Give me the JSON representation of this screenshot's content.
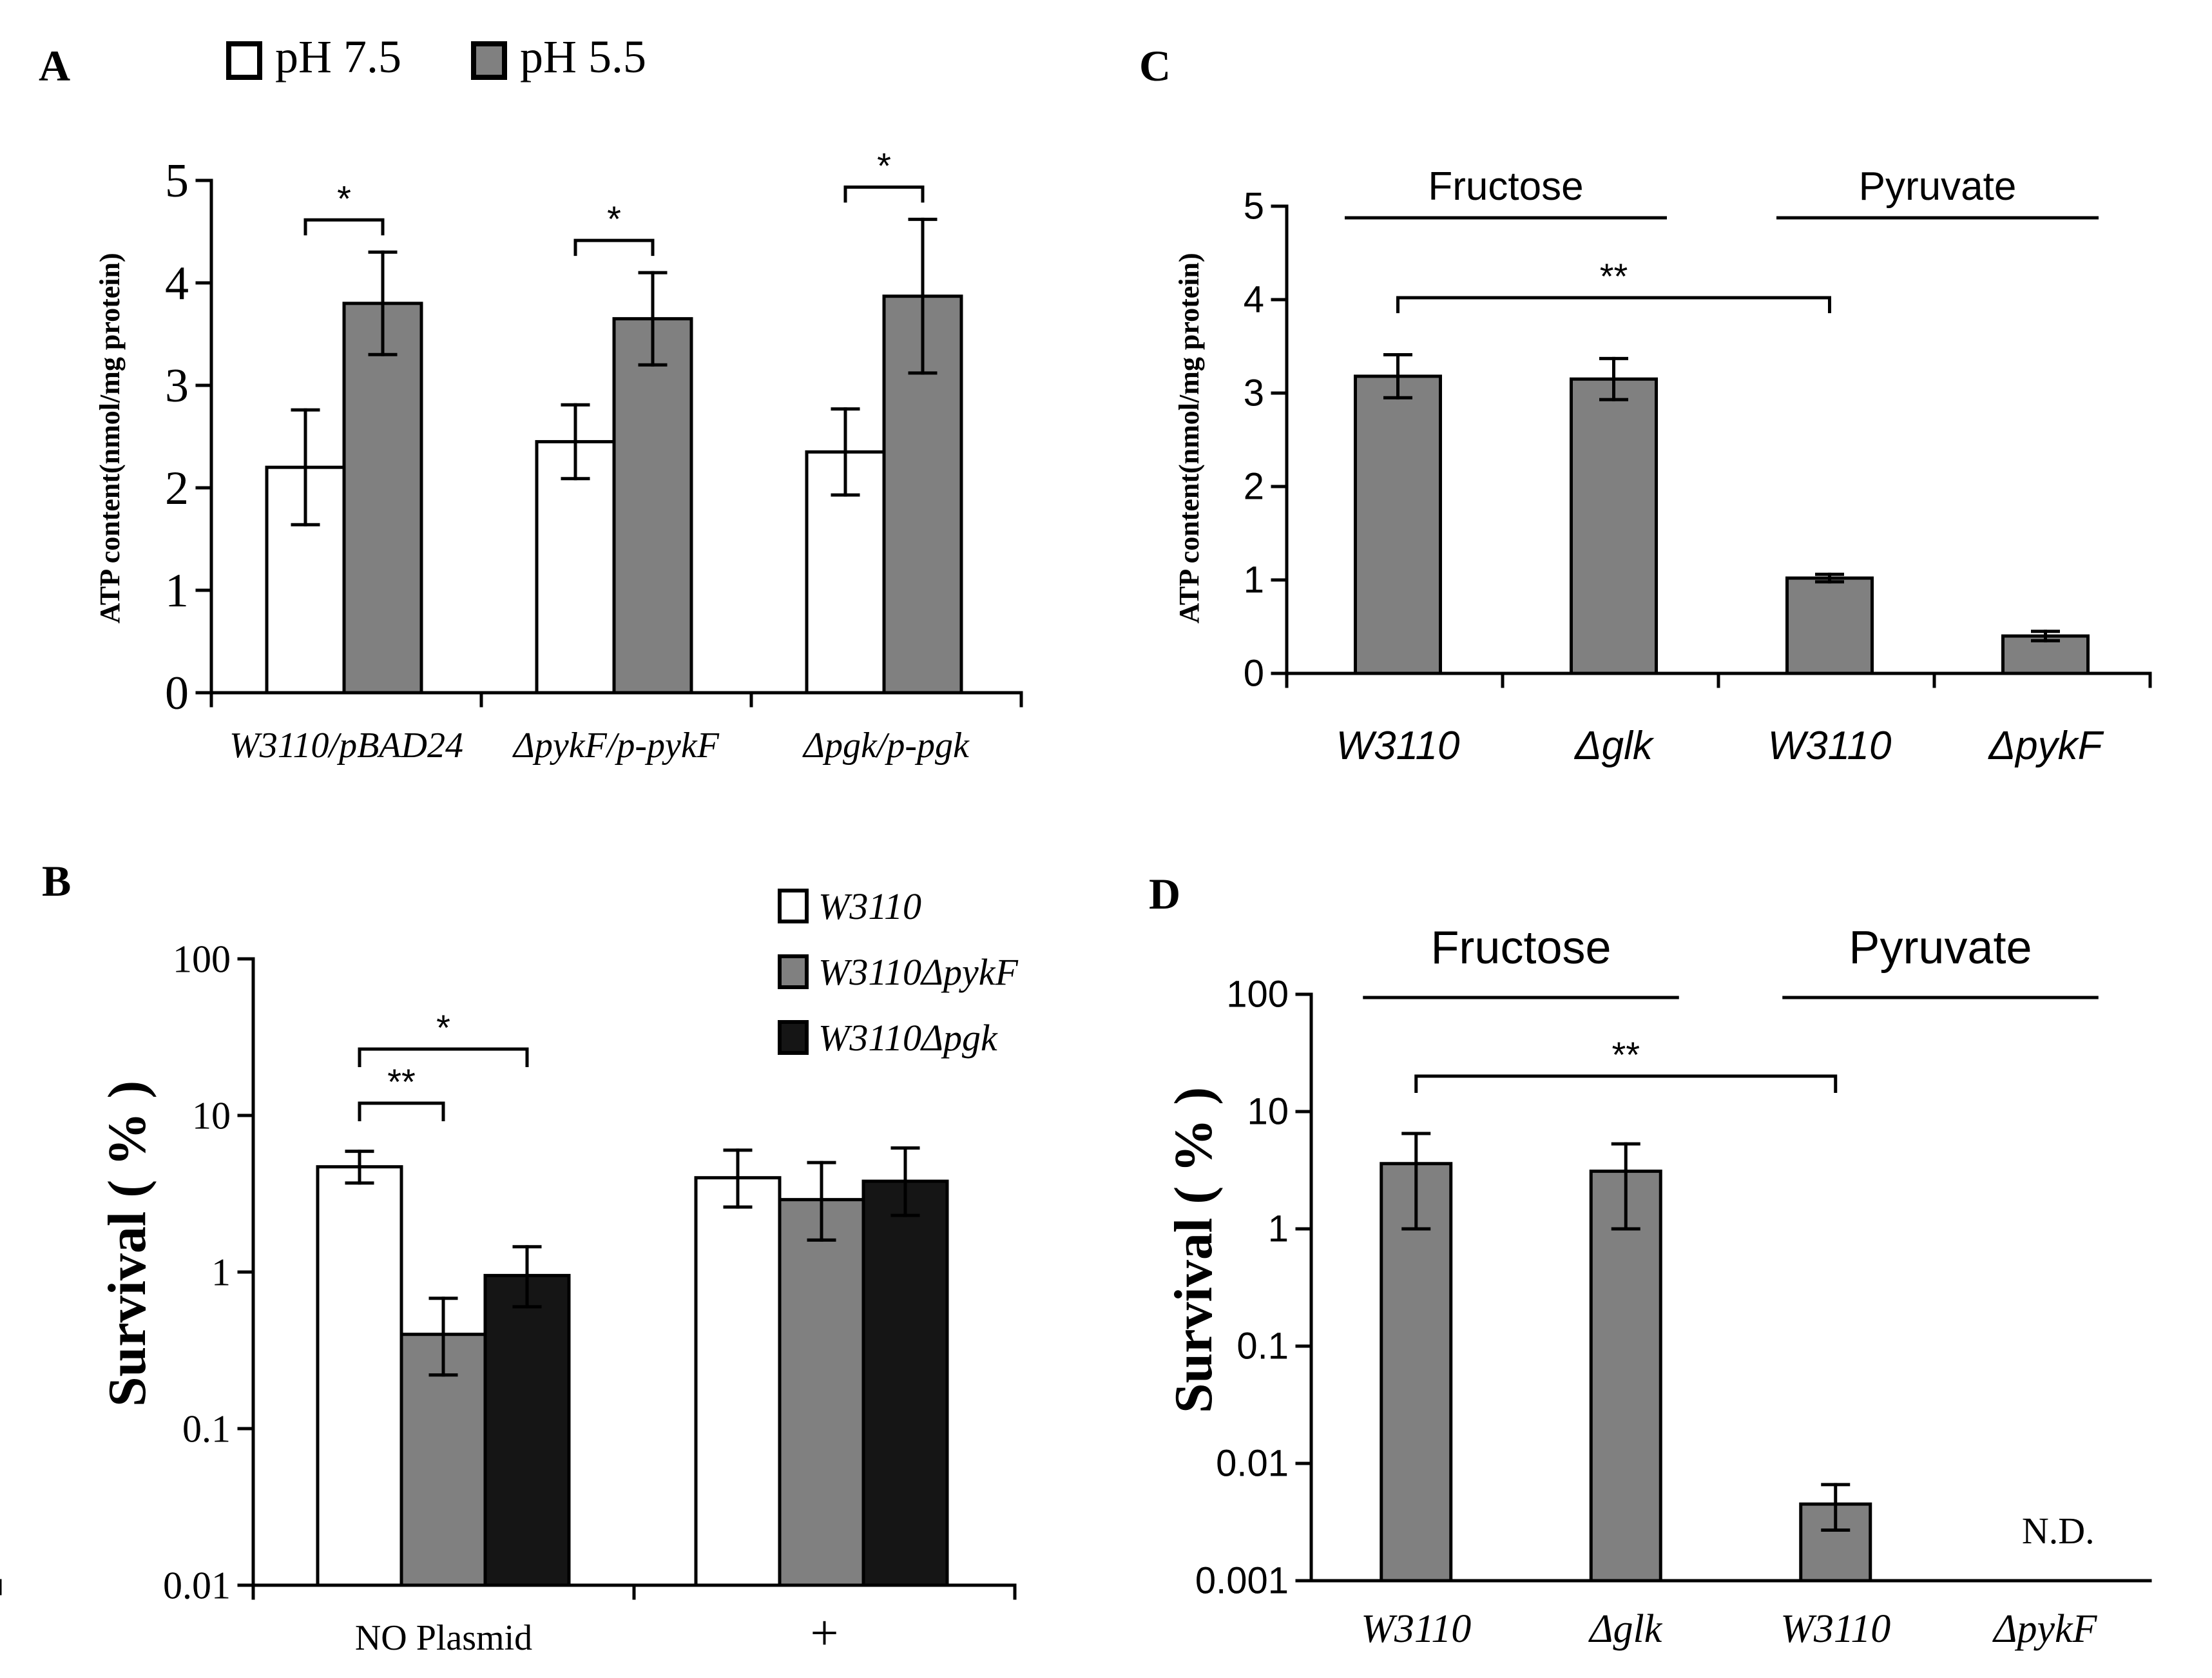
{
  "chart_data": [
    {
      "panel": "A",
      "type": "bar",
      "title": "",
      "ylabel": "ATP content(nmol/mg protein)",
      "ylim": [
        0,
        5
      ],
      "yticks": [
        0,
        1,
        2,
        3,
        4,
        5
      ],
      "yscale": "linear",
      "categories": [
        "W3110/pBAD24",
        "ΔpykF/p-pykF",
        "Δpgk/p-pgk"
      ],
      "series": [
        {
          "name": "pH 7.5",
          "color": "#ffffff",
          "values": [
            2.2,
            2.45,
            2.35
          ],
          "errors": [
            0.56,
            0.36,
            0.42
          ]
        },
        {
          "name": "pH 5.5",
          "color": "#808080",
          "values": [
            3.8,
            3.65,
            3.87
          ],
          "errors": [
            0.5,
            0.45,
            0.75
          ]
        }
      ],
      "significance": [
        {
          "group": 0,
          "label": "*"
        },
        {
          "group": 1,
          "label": "*"
        },
        {
          "group": 2,
          "label": "*"
        }
      ],
      "legend": "top-left"
    },
    {
      "panel": "B",
      "type": "bar",
      "title": "",
      "ylabel": "Survival ( % )",
      "ylim": [
        0.01,
        100
      ],
      "yticks": [
        0.01,
        0.1,
        1,
        10,
        100
      ],
      "yscale": "log",
      "categories": [
        "NO Plasmid",
        "+"
      ],
      "series": [
        {
          "name": "W3110",
          "color": "#ffffff",
          "values": [
            4.7,
            4.0
          ],
          "err_low": [
            3.7,
            2.6
          ],
          "err_high": [
            5.9,
            6.0
          ]
        },
        {
          "name": "W3110ΔpykF",
          "color": "#808080",
          "values": [
            0.4,
            2.9
          ],
          "err_low": [
            0.22,
            1.6
          ],
          "err_high": [
            0.68,
            5.0
          ]
        },
        {
          "name": "W3110Δpgk",
          "color": "#151515",
          "values": [
            0.95,
            3.8
          ],
          "err_low": [
            0.6,
            2.3
          ],
          "err_high": [
            1.45,
            6.2
          ]
        }
      ],
      "significance": [
        {
          "from_series": 0,
          "to_series": 1,
          "group": 0,
          "label": "**"
        },
        {
          "from_series": 0,
          "to_series": 2,
          "group": 0,
          "label": "*"
        }
      ],
      "legend": "top-right"
    },
    {
      "panel": "C",
      "type": "bar",
      "title": "",
      "ylabel": "ATP content(nmol/mg protein)",
      "ylim": [
        0,
        5
      ],
      "yticks": [
        0,
        1,
        2,
        3,
        4,
        5
      ],
      "yscale": "linear",
      "categories": [
        "W3110",
        "Δglk",
        "W3110",
        "ΔpykF"
      ],
      "groups": [
        {
          "label": "Fructose",
          "from": 0,
          "to": 1
        },
        {
          "label": "Pyruvate",
          "from": 2,
          "to": 3
        }
      ],
      "series": [
        {
          "name": "ATP content",
          "color": "#808080",
          "values": [
            3.18,
            3.15,
            1.02,
            0.4
          ],
          "errors": [
            0.23,
            0.22,
            0.04,
            0.05
          ]
        }
      ],
      "significance": [
        {
          "from": 0,
          "to": 2,
          "label": "**"
        }
      ]
    },
    {
      "panel": "D",
      "type": "bar",
      "title": "",
      "ylabel": "Survival ( % )",
      "ylim": [
        0.001,
        100
      ],
      "yticks": [
        0.001,
        0.01,
        0.1,
        1,
        10,
        100
      ],
      "yscale": "log",
      "categories": [
        "W3110",
        "Δglk",
        "W3110",
        "ΔpykF"
      ],
      "groups": [
        {
          "label": "Fructose",
          "from": 0,
          "to": 1
        },
        {
          "label": "Pyruvate",
          "from": 2,
          "to": 3
        }
      ],
      "series": [
        {
          "name": "Survival",
          "color": "#808080",
          "values": [
            3.6,
            3.1,
            0.0045,
            null
          ],
          "err_low": [
            1.0,
            1.0,
            0.0027,
            null
          ],
          "err_high": [
            6.5,
            5.3,
            0.0066,
            null
          ]
        }
      ],
      "annotations": [
        {
          "category": 3,
          "text": "N.D."
        }
      ],
      "significance": [
        {
          "from": 0,
          "to": 2,
          "label": "**"
        }
      ]
    }
  ]
}
